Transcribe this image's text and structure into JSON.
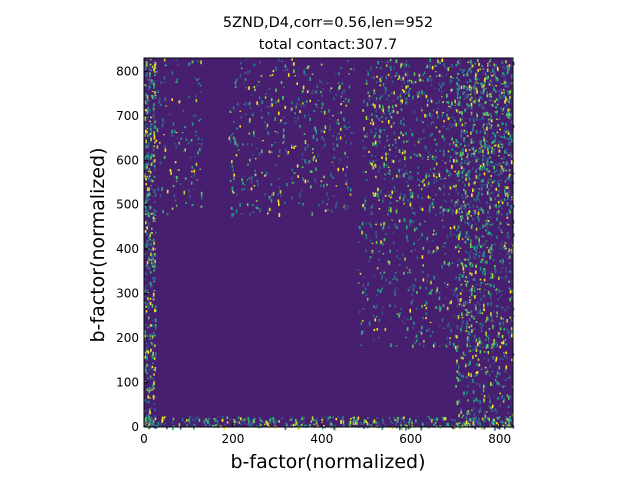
{
  "chart_data": {
    "type": "heatmap",
    "title": "5ZND,D4,corr=0.56,len=952",
    "subtitle": "total contact:307.7",
    "xlabel": "b-factor(normalized)",
    "ylabel": "b-factor(normalized)",
    "xlim": [
      0,
      830
    ],
    "ylim": [
      0,
      830
    ],
    "x_ticks": [
      0,
      200,
      400,
      600,
      800
    ],
    "y_ticks": [
      0,
      100,
      200,
      300,
      400,
      500,
      600,
      700,
      800
    ],
    "colormap": "viridis",
    "background_value_color": "#481f70",
    "dense_regions": [
      {
        "x_range": [
          490,
          830
        ],
        "y_range": [
          480,
          830
        ],
        "density": "high"
      },
      {
        "x_range": [
          190,
          470
        ],
        "y_range": [
          480,
          830
        ],
        "density": "medium"
      },
      {
        "x_range": [
          0,
          130
        ],
        "y_range": [
          480,
          830
        ],
        "density": "low"
      },
      {
        "x_range": [
          480,
          830
        ],
        "y_range": [
          180,
          470
        ],
        "density": "medium"
      },
      {
        "x_range": [
          700,
          830
        ],
        "y_range": [
          0,
          830
        ],
        "density": "high"
      },
      {
        "x_range": [
          0,
          830
        ],
        "y_range": [
          0,
          25
        ],
        "density": "medium"
      },
      {
        "x_range": [
          0,
          25
        ],
        "y_range": [
          0,
          830
        ],
        "density": "medium"
      }
    ]
  }
}
